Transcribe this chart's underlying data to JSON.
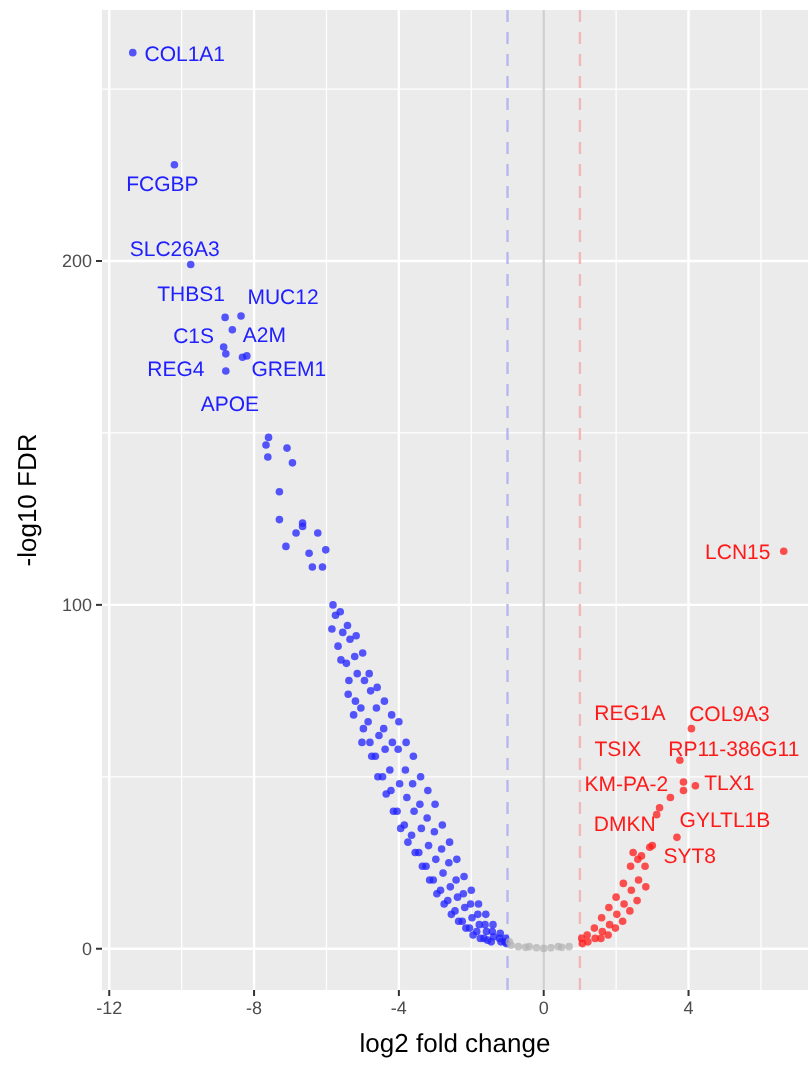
{
  "chart_data": {
    "type": "scatter",
    "xlabel": "log2 fold change",
    "ylabel": "-log10 FDR",
    "xlim": [
      -12.2,
      7.3
    ],
    "ylim": [
      -12,
      273
    ],
    "xticks": [
      -12,
      {
        "value": -10,
        "label": null
      },
      -8,
      {
        "value": -6,
        "label": null
      },
      -4,
      {
        "value": -2,
        "label": null
      },
      0,
      {
        "value": 2,
        "label": null
      },
      4,
      {
        "value": 6,
        "label": null
      }
    ],
    "yticks": [
      0,
      {
        "value": 50,
        "label": null
      },
      100,
      {
        "value": 150,
        "label": null
      },
      200,
      {
        "value": 250,
        "label": null
      }
    ],
    "grid": true,
    "marker": "circle",
    "ref_lines": [
      {
        "axis": "x",
        "value": -1,
        "color": "#b8b8f0",
        "line_style": "dashed"
      },
      {
        "axis": "x",
        "value": 0,
        "color": "#d0d0d0",
        "line_style": "solid"
      },
      {
        "axis": "x",
        "value": 1,
        "color": "#f0b8b8",
        "line_style": "dashed"
      }
    ],
    "series": [
      {
        "color": "#2020ff",
        "x": [
          -11.35,
          -10.2,
          -9.75,
          -8.8,
          -8.36,
          -8.84,
          -8.6,
          -8.78,
          -8.2,
          -8.32,
          -8.78,
          -7.6,
          -7.67,
          -7.62,
          -7.09,
          -6.94,
          -7.3,
          -7.3,
          -6.66,
          -6.84,
          -6.24,
          -7.12,
          -6.66,
          -6.48,
          -6.02,
          -6.11,
          -6.39,
          -5.82,
          -5.75,
          -5.85,
          -5.62,
          -5.55,
          -5.68,
          -5.6,
          -5.42,
          -5.35,
          -5.45,
          -5.38,
          -5.4,
          -5.18,
          -5.22,
          -5.15,
          -5.2,
          -5.25,
          -5.0,
          -4.95,
          -5.05,
          -4.98,
          -5.02,
          -4.82,
          -4.78,
          -4.85,
          -4.8,
          -4.75,
          -4.6,
          -4.62,
          -4.55,
          -4.65,
          -4.58,
          -4.4,
          -4.42,
          -4.38,
          -4.45,
          -4.35,
          -4.2,
          -4.18,
          -4.25,
          -4.22,
          -4.15,
          -4.0,
          -4.02,
          -3.98,
          -4.05,
          -3.95,
          -3.8,
          -3.82,
          -3.78,
          -3.85,
          -3.75,
          -3.6,
          -3.62,
          -3.58,
          -3.65,
          -3.55,
          -3.4,
          -3.42,
          -3.38,
          -3.45,
          -3.35,
          -3.2,
          -3.22,
          -3.18,
          -3.25,
          -3.15,
          -3.0,
          -3.02,
          -2.98,
          -3.05,
          -2.95,
          -2.8,
          -2.82,
          -2.78,
          -2.85,
          -2.75,
          -2.6,
          -2.62,
          -2.58,
          -2.65,
          -2.55,
          -2.4,
          -2.42,
          -2.38,
          -2.45,
          -2.35,
          -2.2,
          -2.22,
          -2.18,
          -2.25,
          -2.15,
          -2.0,
          -2.02,
          -1.98,
          -2.05,
          -1.95,
          -1.8,
          -1.82,
          -1.78,
          -1.85,
          -1.75,
          -1.6,
          -1.62,
          -1.58,
          -1.65,
          -1.55,
          -1.4,
          -1.42,
          -1.38,
          -1.45,
          -1.2,
          -1.22,
          -1.18,
          -1.05,
          -1.07,
          -1.03
        ],
        "values": [
          260.6,
          228,
          199,
          183.6,
          184,
          175,
          180,
          173,
          172.4,
          172,
          168,
          148.7,
          146.5,
          143,
          145.6,
          141.3,
          132.9,
          124.8,
          123.8,
          120.9,
          120.9,
          117,
          122.8,
          115,
          116,
          111,
          111,
          100,
          97,
          93,
          98,
          92,
          88,
          84,
          94,
          90,
          83,
          78,
          74,
          91,
          85,
          80,
          72,
          68,
          86,
          78,
          70,
          64,
          60,
          80,
          75,
          66,
          60,
          56,
          76,
          70,
          62,
          56,
          50,
          72,
          64,
          58,
          50,
          45,
          68,
          60,
          52,
          46,
          40,
          66,
          58,
          48,
          40,
          35,
          60,
          52,
          44,
          36,
          31,
          56,
          48,
          40,
          33,
          28,
          50,
          42,
          35,
          28,
          24,
          46,
          38,
          30,
          24,
          20,
          42,
          34,
          26,
          20,
          16,
          36,
          29,
          22,
          17,
          13,
          31,
          25,
          18,
          14,
          10,
          26,
          20,
          15,
          11,
          8,
          21,
          16,
          12,
          8,
          6,
          17,
          13,
          9,
          6,
          4,
          13,
          10,
          7,
          5,
          3,
          10,
          7,
          5,
          3,
          2.5,
          7,
          5,
          3.5,
          2,
          4.5,
          3,
          2,
          3,
          2,
          1.5
        ]
      },
      {
        "color": "#b3b3b3",
        "x": [
          -0.95,
          -0.4,
          -0.2,
          0,
          0.2,
          0.4,
          -0.9,
          -0.7,
          -0.5,
          0.5,
          0.7
        ],
        "values": [
          2,
          0.6,
          0.3,
          0.1,
          0.3,
          0.6,
          1,
          0.6,
          0.4,
          0.4,
          0.6
        ]
      },
      {
        "color": "#ff1a1a",
        "x": [
          1.05,
          1.07,
          1.2,
          1.22,
          1.4,
          1.42,
          1.6,
          1.62,
          1.58,
          1.8,
          1.82,
          1.78,
          2.0,
          2.02,
          1.98,
          2.2,
          2.22,
          2.18,
          2.4,
          2.42,
          2.38,
          2.6,
          2.62,
          2.58,
          2.8,
          2.82,
          4.08,
          3.76,
          4.19,
          3.86,
          3.86,
          3.5,
          3.12,
          3.2,
          3.68,
          2.93,
          2.47,
          2.7,
          3.0,
          6.63
        ],
        "values": [
          3,
          1.5,
          4,
          2,
          6,
          3,
          9,
          5,
          3,
          12,
          7,
          4,
          15,
          10,
          6,
          19,
          13,
          8,
          24,
          17,
          11,
          26,
          20,
          14,
          24,
          18,
          64,
          54.8,
          47.4,
          46,
          48.5,
          44,
          39,
          41,
          32.4,
          29.5,
          28,
          27,
          30,
          115.6
        ]
      }
    ],
    "annotations": [
      {
        "text": "COL1A1",
        "x": -11.35,
        "y": 260.6
      },
      {
        "text": "FCGBP",
        "x": -10.2,
        "y": 228
      },
      {
        "text": "SLC26A3",
        "x": -9.75,
        "y": 199
      },
      {
        "text": "THBS1",
        "x": -8.8,
        "y": 183.6
      },
      {
        "text": "MUC12",
        "x": -8.36,
        "y": 184
      },
      {
        "text": "C1S",
        "x": -8.84,
        "y": 175
      },
      {
        "text": "A2M",
        "x": -8.6,
        "y": 180
      },
      {
        "text": "REG4",
        "x": -8.78,
        "y": 173
      },
      {
        "text": "GREM1",
        "x": -8.2,
        "y": 172.4
      },
      {
        "text": "APOE",
        "x": -8.78,
        "y": 168
      },
      {
        "text": "LCN15",
        "x": 6.63,
        "y": 115.6
      },
      {
        "text": "REG1A",
        "x": 3.76,
        "y": 54.8
      },
      {
        "text": "COL9A3",
        "x": 4.08,
        "y": 64
      },
      {
        "text": "TSIX",
        "x": 3.76,
        "y": 54.8
      },
      {
        "text": "RP11-386G11",
        "x": 3.76,
        "y": 54.8
      },
      {
        "text": "KM-PA-2",
        "x": 3.5,
        "y": 44
      },
      {
        "text": "TLX1",
        "x": 4.19,
        "y": 47.4
      },
      {
        "text": "DMKN",
        "x": 3.12,
        "y": 39
      },
      {
        "text": "GYLTL1B",
        "x": 3.68,
        "y": 32.4
      },
      {
        "text": "SYT8",
        "x": 2.93,
        "y": 29.5
      }
    ]
  }
}
